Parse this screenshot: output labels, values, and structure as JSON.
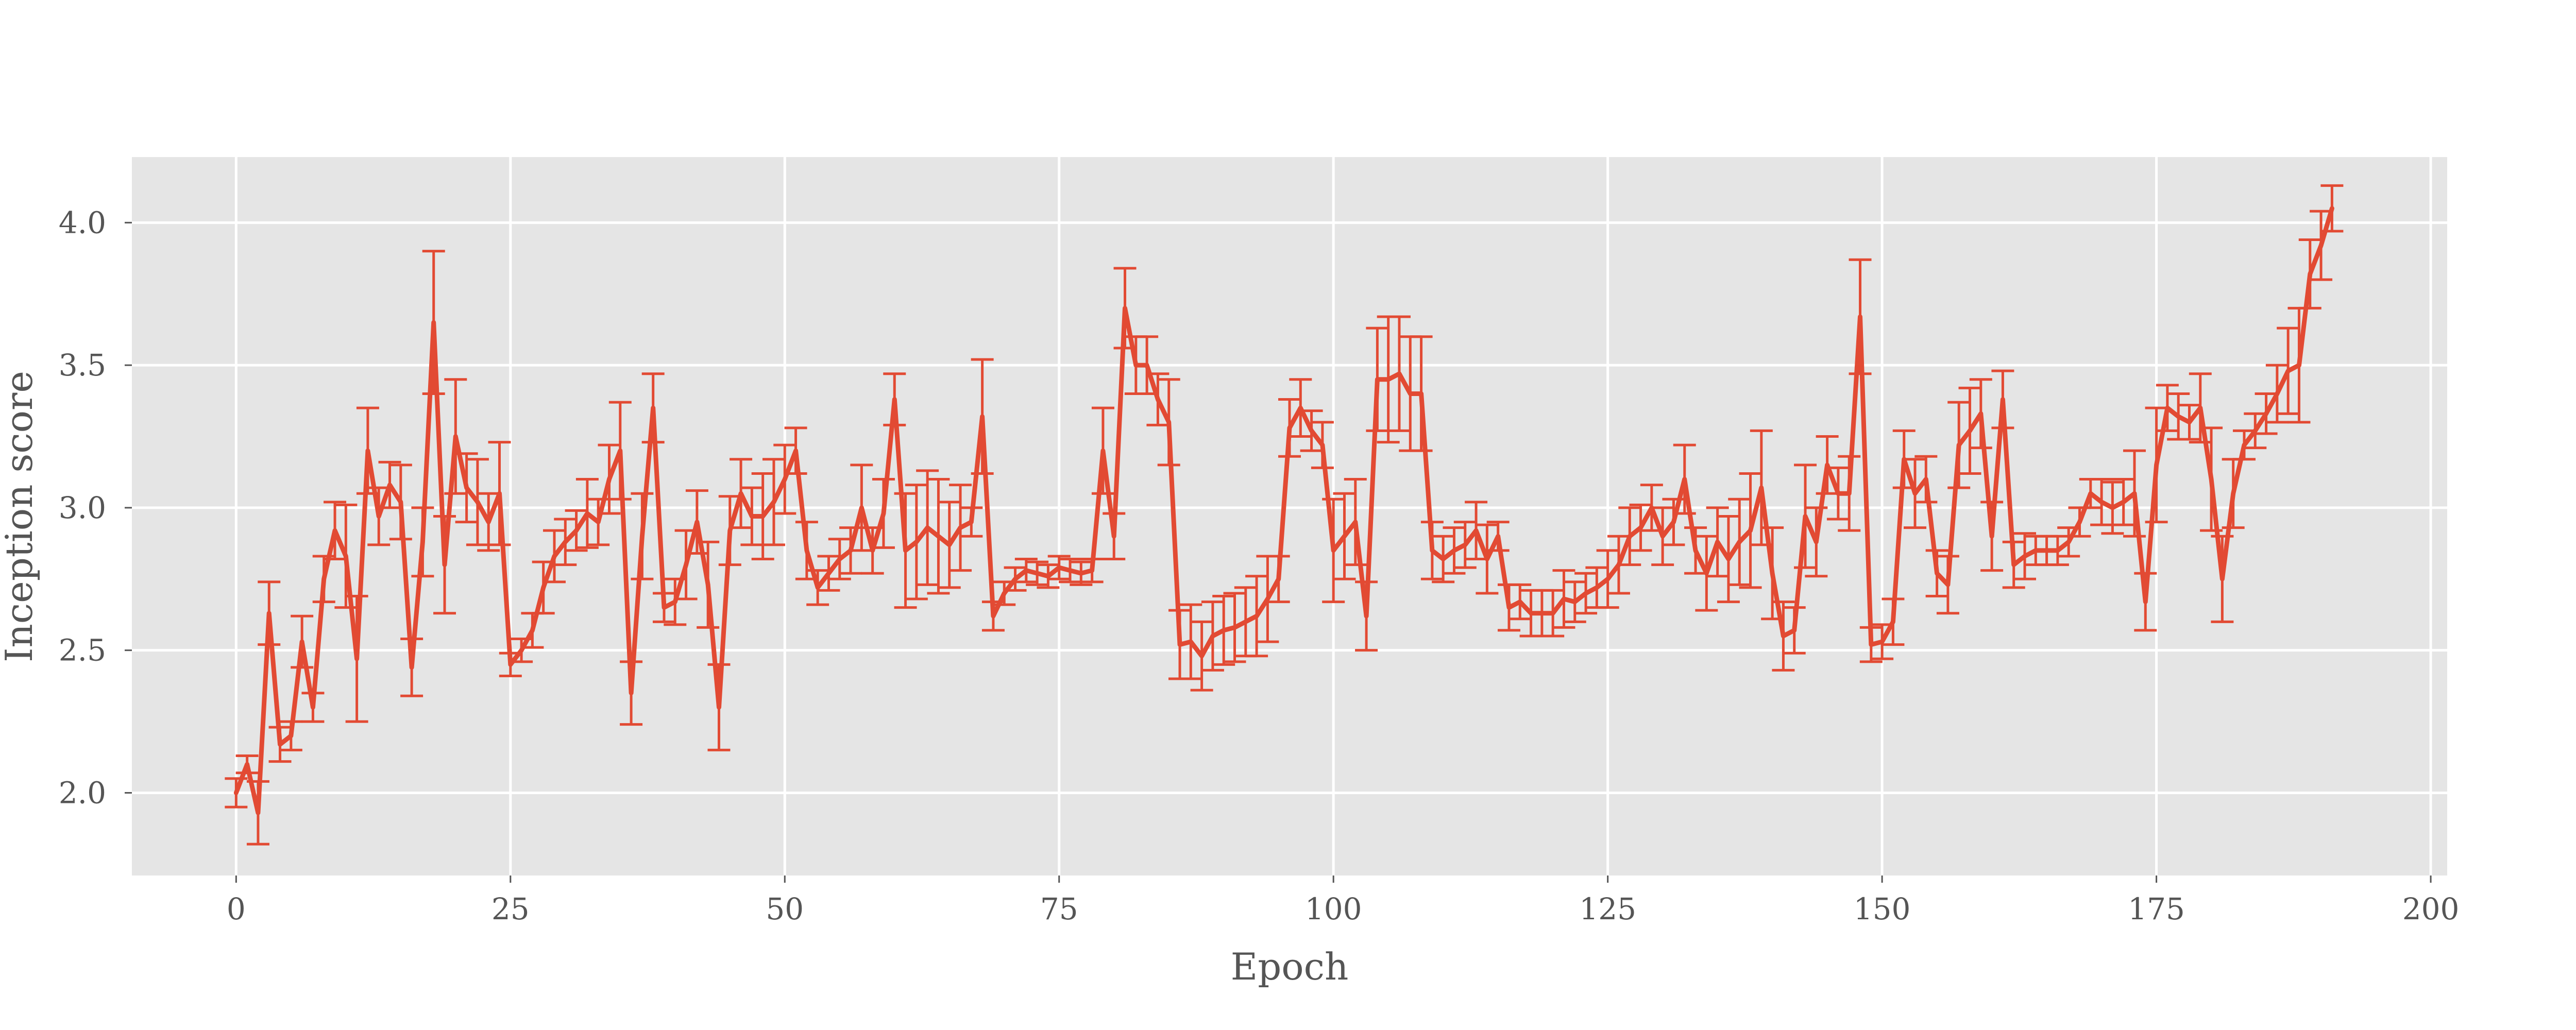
{
  "chart_data": {
    "type": "line",
    "title": "",
    "xlabel": "Epoch",
    "ylabel": "Inception score",
    "xlim": [
      -9.5,
      201.5
    ],
    "ylim": [
      1.71,
      4.23
    ],
    "xticks": [
      0,
      25,
      50,
      75,
      100,
      125,
      150,
      175,
      200
    ],
    "xtick_labels": [
      "0",
      "25",
      "50",
      "75",
      "100",
      "125",
      "150",
      "175",
      "200"
    ],
    "yticks": [
      2.0,
      2.5,
      3.0,
      3.5,
      4.0
    ],
    "ytick_labels": [
      "2.0",
      "2.5",
      "3.0",
      "3.5",
      "4.0"
    ],
    "grid": true,
    "background": "#e5e5e5",
    "series": [
      {
        "color": "#e24a33",
        "x": [
          0,
          1,
          2,
          3,
          4,
          5,
          6,
          7,
          8,
          9,
          10,
          11,
          12,
          13,
          14,
          15,
          16,
          17,
          18,
          19,
          20,
          21,
          22,
          23,
          24,
          25,
          26,
          27,
          28,
          29,
          30,
          31,
          32,
          33,
          34,
          35,
          36,
          37,
          38,
          39,
          40,
          41,
          42,
          43,
          44,
          45,
          46,
          47,
          48,
          49,
          50,
          51,
          52,
          53,
          54,
          55,
          56,
          57,
          58,
          59,
          60,
          61,
          62,
          63,
          64,
          65,
          66,
          67,
          68,
          69,
          70,
          71,
          72,
          73,
          74,
          75,
          76,
          77,
          78,
          79,
          80,
          81,
          82,
          83,
          84,
          85,
          86,
          87,
          88,
          89,
          90,
          91,
          92,
          93,
          94,
          95,
          96,
          97,
          98,
          99,
          100,
          101,
          102,
          103,
          104,
          105,
          106,
          107,
          108,
          109,
          110,
          111,
          112,
          113,
          114,
          115,
          116,
          117,
          118,
          119,
          120,
          121,
          122,
          123,
          124,
          125,
          126,
          127,
          128,
          129,
          130,
          131,
          132,
          133,
          134,
          135,
          136,
          137,
          138,
          139,
          140,
          141,
          142,
          143,
          144,
          145,
          146,
          147,
          148,
          149,
          150,
          151,
          152,
          153,
          154,
          155,
          156,
          157,
          158,
          159,
          160,
          161,
          162,
          163,
          164,
          165,
          166,
          167,
          168,
          169,
          170,
          171,
          172,
          173,
          174,
          175,
          176,
          177,
          178,
          179,
          180,
          181,
          182,
          183,
          184,
          185,
          186,
          187,
          188,
          189,
          190,
          191
        ],
        "y": [
          2.0,
          2.1,
          1.93,
          2.63,
          2.17,
          2.2,
          2.53,
          2.3,
          2.75,
          2.92,
          2.83,
          2.47,
          3.2,
          2.97,
          3.08,
          3.02,
          2.44,
          2.88,
          3.65,
          2.8,
          3.25,
          3.07,
          3.02,
          2.95,
          3.05,
          2.45,
          2.5,
          2.57,
          2.72,
          2.83,
          2.88,
          2.92,
          2.98,
          2.95,
          3.1,
          3.2,
          2.35,
          2.9,
          3.35,
          2.65,
          2.67,
          2.8,
          2.95,
          2.73,
          2.3,
          2.92,
          3.05,
          2.97,
          2.97,
          3.02,
          3.1,
          3.2,
          2.85,
          2.72,
          2.77,
          2.82,
          2.85,
          3.0,
          2.85,
          2.98,
          3.38,
          2.85,
          2.88,
          2.93,
          2.9,
          2.87,
          2.93,
          2.95,
          3.32,
          2.62,
          2.7,
          2.75,
          2.78,
          2.77,
          2.76,
          2.79,
          2.78,
          2.77,
          2.78,
          3.2,
          2.9,
          3.7,
          3.5,
          3.5,
          3.38,
          3.3,
          2.52,
          2.53,
          2.48,
          2.55,
          2.57,
          2.58,
          2.6,
          2.62,
          2.68,
          2.75,
          3.28,
          3.35,
          3.27,
          3.22,
          2.85,
          2.9,
          2.95,
          2.62,
          3.45,
          3.45,
          3.47,
          3.4,
          3.4,
          2.85,
          2.82,
          2.85,
          2.87,
          2.92,
          2.82,
          2.9,
          2.65,
          2.67,
          2.63,
          2.63,
          2.63,
          2.68,
          2.67,
          2.7,
          2.72,
          2.75,
          2.8,
          2.9,
          2.93,
          3.0,
          2.9,
          2.95,
          3.1,
          2.85,
          2.77,
          2.88,
          2.82,
          2.88,
          2.92,
          3.07,
          2.77,
          2.55,
          2.57,
          2.97,
          2.88,
          3.15,
          3.05,
          3.05,
          3.67,
          2.52,
          2.53,
          2.6,
          3.17,
          3.05,
          3.1,
          2.77,
          2.73,
          3.22,
          3.27,
          3.33,
          2.9,
          3.38,
          2.8,
          2.83,
          2.85,
          2.85,
          2.85,
          2.88,
          2.95,
          3.05,
          3.02,
          3.0,
          3.02,
          3.05,
          2.67,
          3.15,
          3.35,
          3.32,
          3.3,
          3.35,
          3.1,
          2.75,
          3.05,
          3.22,
          3.27,
          3.33,
          3.4,
          3.48,
          3.5,
          3.82,
          3.92,
          4.05
        ],
        "err": [
          0.05,
          0.03,
          0.11,
          0.11,
          0.06,
          0.05,
          0.09,
          0.05,
          0.08,
          0.1,
          0.18,
          0.22,
          0.15,
          0.1,
          0.08,
          0.13,
          0.1,
          0.12,
          0.25,
          0.17,
          0.2,
          0.12,
          0.15,
          0.1,
          0.18,
          0.04,
          0.04,
          0.06,
          0.09,
          0.09,
          0.08,
          0.07,
          0.12,
          0.08,
          0.12,
          0.17,
          0.11,
          0.15,
          0.12,
          0.05,
          0.08,
          0.12,
          0.11,
          0.15,
          0.15,
          0.12,
          0.12,
          0.1,
          0.15,
          0.15,
          0.12,
          0.08,
          0.1,
          0.06,
          0.06,
          0.07,
          0.08,
          0.15,
          0.08,
          0.12,
          0.09,
          0.2,
          0.2,
          0.2,
          0.2,
          0.15,
          0.15,
          0.05,
          0.2,
          0.05,
          0.04,
          0.04,
          0.04,
          0.04,
          0.04,
          0.04,
          0.04,
          0.04,
          0.04,
          0.15,
          0.08,
          0.14,
          0.1,
          0.1,
          0.09,
          0.15,
          0.12,
          0.13,
          0.12,
          0.12,
          0.12,
          0.12,
          0.12,
          0.14,
          0.15,
          0.08,
          0.1,
          0.1,
          0.07,
          0.08,
          0.18,
          0.15,
          0.15,
          0.12,
          0.18,
          0.22,
          0.2,
          0.2,
          0.2,
          0.1,
          0.08,
          0.08,
          0.08,
          0.1,
          0.12,
          0.05,
          0.08,
          0.06,
          0.08,
          0.08,
          0.08,
          0.1,
          0.07,
          0.07,
          0.07,
          0.1,
          0.1,
          0.1,
          0.08,
          0.08,
          0.1,
          0.08,
          0.12,
          0.08,
          0.13,
          0.12,
          0.15,
          0.15,
          0.2,
          0.2,
          0.16,
          0.12,
          0.08,
          0.18,
          0.12,
          0.1,
          0.09,
          0.13,
          0.2,
          0.06,
          0.06,
          0.08,
          0.1,
          0.12,
          0.08,
          0.08,
          0.1,
          0.15,
          0.15,
          0.12,
          0.12,
          0.1,
          0.08,
          0.08,
          0.05,
          0.05,
          0.05,
          0.05,
          0.05,
          0.05,
          0.08,
          0.09,
          0.08,
          0.15,
          0.1,
          0.2,
          0.08,
          0.08,
          0.06,
          0.12,
          0.18,
          0.15,
          0.12,
          0.05,
          0.06,
          0.07,
          0.1,
          0.15,
          0.2,
          0.12,
          0.12,
          0.08
        ]
      }
    ]
  }
}
